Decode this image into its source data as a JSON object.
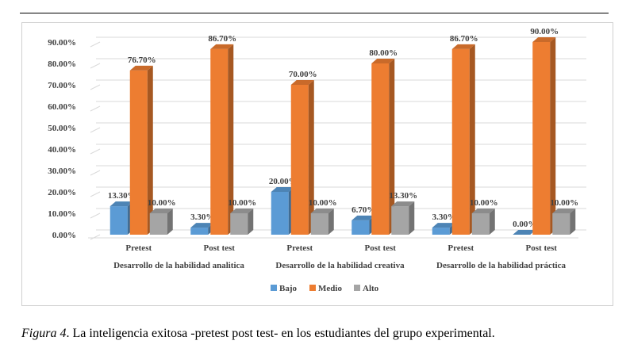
{
  "caption": {
    "label": "Figura 4",
    "text": ". La inteligencia exitosa -pretest post test- en los estudiantes del grupo experimental."
  },
  "chart_data": {
    "type": "bar",
    "style": "3d-clustered",
    "title": "",
    "xlabel": "",
    "ylabel": "",
    "ylim": [
      0,
      90
    ],
    "y_ticks": [
      "0.00%",
      "10.00%",
      "20.00%",
      "30.00%",
      "40.00%",
      "50.00%",
      "60.00%",
      "70.00%",
      "80.00%",
      "90.00%"
    ],
    "grid": true,
    "legend_position": "bottom",
    "groups": [
      {
        "label": "Desarrollo de la habilidad analitica",
        "categories": [
          "Pretest",
          "Post test"
        ]
      },
      {
        "label": "Desarrollo de la habilidad creativa",
        "categories": [
          "Pretest",
          "Post test"
        ]
      },
      {
        "label": "Desarrollo de la habilidad práctica",
        "categories": [
          "Pretest",
          "Post test"
        ]
      }
    ],
    "series": [
      {
        "name": "Bajo",
        "color": "#5b9bd5",
        "values": [
          13.3,
          3.3,
          20.0,
          6.7,
          3.3,
          0.0
        ],
        "labels": [
          "13.30%",
          "3.30%",
          "20.00%",
          "6.70%",
          "3.30%",
          "0.00%"
        ]
      },
      {
        "name": "Medio",
        "color": "#ed7d31",
        "values": [
          76.7,
          86.7,
          70.0,
          80.0,
          86.7,
          90.0
        ],
        "labels": [
          "76.70%",
          "86.70%",
          "70.00%",
          "80.00%",
          "86.70%",
          "90.00%"
        ]
      },
      {
        "name": "Alto",
        "color": "#a5a5a5",
        "values": [
          10.0,
          10.0,
          10.0,
          13.3,
          10.0,
          10.0
        ],
        "labels": [
          "10.00%",
          "10.00%",
          "10.00%",
          "13.30%",
          "10.00%",
          "10.00%"
        ]
      }
    ]
  }
}
